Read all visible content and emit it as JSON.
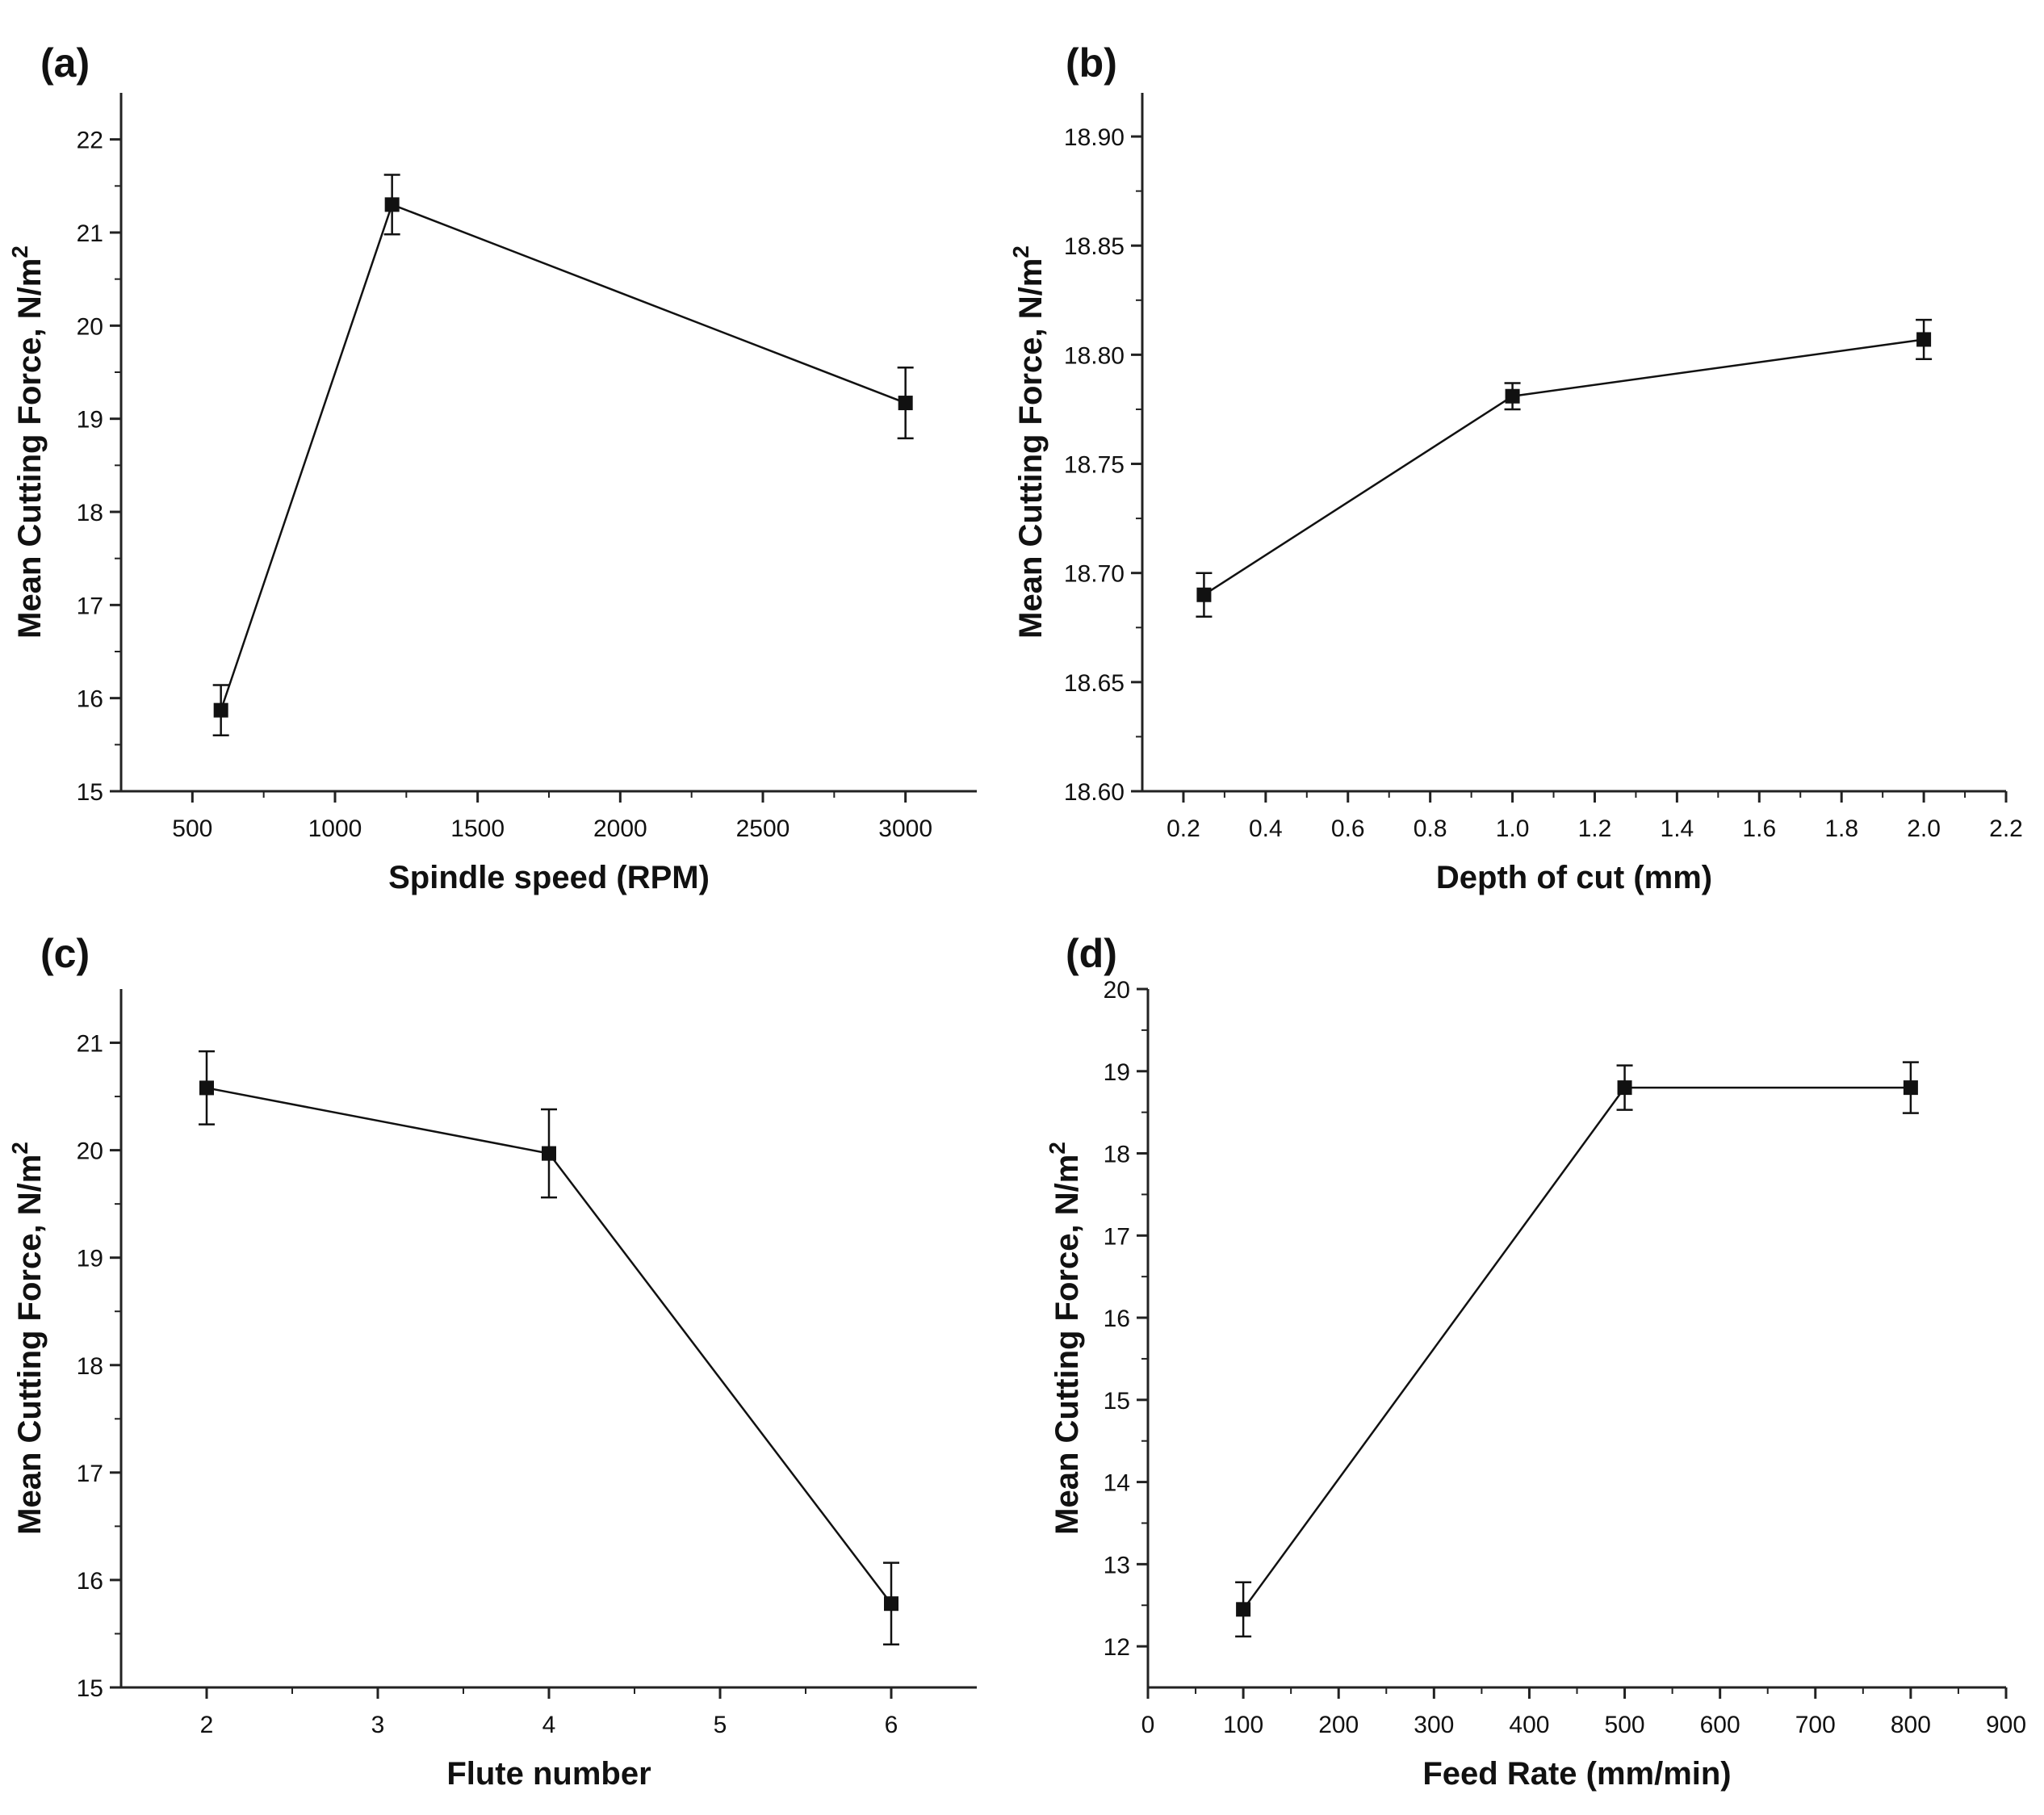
{
  "chart_data": [
    {
      "panel": "(a)",
      "type": "line",
      "xlabel": "Spindle speed (RPM)",
      "ylabel": "Mean Cutting Force, N/m",
      "ylabel_sup": "2",
      "xlim": [
        250,
        3250
      ],
      "ylim": [
        15,
        22.5
      ],
      "xticks": [
        500,
        1000,
        1500,
        2000,
        2500,
        3000
      ],
      "xtick_labels": [
        "500",
        "1000",
        "1500",
        "2000",
        "2500",
        "3000"
      ],
      "yticks": [
        15,
        16,
        17,
        18,
        19,
        20,
        21,
        22
      ],
      "ytick_labels": [
        "15",
        "16",
        "17",
        "18",
        "19",
        "20",
        "21",
        "22"
      ],
      "series": [
        {
          "name": "Mean Cutting Force",
          "x": [
            600,
            1200,
            3000
          ],
          "y": [
            15.87,
            21.3,
            19.17
          ],
          "err": [
            0.27,
            0.32,
            0.38
          ]
        }
      ]
    },
    {
      "panel": "(b)",
      "type": "line",
      "xlabel": "Depth of cut (mm)",
      "ylabel": "Mean Cutting Force, N/m",
      "ylabel_sup": "2",
      "xlim": [
        0.1,
        2.2
      ],
      "ylim": [
        18.6,
        18.92
      ],
      "xticks": [
        0.2,
        0.4,
        0.6,
        0.8,
        1.0,
        1.2,
        1.4,
        1.6,
        1.8,
        2.0,
        2.2
      ],
      "xtick_labels": [
        "0.2",
        "0.4",
        "0.6",
        "0.8",
        "1.0",
        "1.2",
        "1.4",
        "1.6",
        "1.8",
        "2.0",
        "2.2"
      ],
      "yticks": [
        18.6,
        18.65,
        18.7,
        18.75,
        18.8,
        18.85,
        18.9
      ],
      "ytick_labels": [
        "18.60",
        "18.65",
        "18.70",
        "18.75",
        "18.80",
        "18.85",
        "18.90"
      ],
      "series": [
        {
          "name": "Mean Cutting Force",
          "x": [
            0.25,
            1.0,
            2.0
          ],
          "y": [
            18.69,
            18.781,
            18.807
          ],
          "err": [
            0.01,
            0.006,
            0.009
          ]
        }
      ]
    },
    {
      "panel": "(c)",
      "type": "line",
      "xlabel": "Flute number",
      "ylabel": "Mean Cutting Force, N/m",
      "ylabel_sup": "2",
      "xlim": [
        1.5,
        6.5
      ],
      "ylim": [
        15,
        21.5
      ],
      "xticks": [
        2,
        3,
        4,
        5,
        6
      ],
      "xtick_labels": [
        "2",
        "3",
        "4",
        "5",
        "6"
      ],
      "yticks": [
        15,
        16,
        17,
        18,
        19,
        20,
        21
      ],
      "ytick_labels": [
        "15",
        "16",
        "17",
        "18",
        "19",
        "20",
        "21"
      ],
      "series": [
        {
          "name": "Mean Cutting Force",
          "x": [
            2,
            4,
            6
          ],
          "y": [
            20.58,
            19.97,
            15.78
          ],
          "err": [
            0.34,
            0.41,
            0.38
          ]
        }
      ]
    },
    {
      "panel": "(d)",
      "type": "line",
      "xlabel": "Feed Rate (mm/min)",
      "ylabel": "Mean Cutting Force, N/m",
      "ylabel_sup": "2",
      "xlim": [
        0,
        900
      ],
      "ylim": [
        11.5,
        20
      ],
      "xticks": [
        0,
        100,
        200,
        300,
        400,
        500,
        600,
        700,
        800,
        900
      ],
      "xtick_labels": [
        "0",
        "100",
        "200",
        "300",
        "400",
        "500",
        "600",
        "700",
        "800",
        "900"
      ],
      "yticks": [
        12,
        13,
        14,
        15,
        16,
        17,
        18,
        19,
        20
      ],
      "ytick_labels": [
        "12",
        "13",
        "14",
        "15",
        "16",
        "17",
        "18",
        "19",
        "20"
      ],
      "series": [
        {
          "name": "Mean Cutting Force",
          "x": [
            100,
            500,
            800
          ],
          "y": [
            12.45,
            18.8,
            18.8
          ],
          "err": [
            0.33,
            0.27,
            0.31
          ]
        }
      ]
    }
  ]
}
